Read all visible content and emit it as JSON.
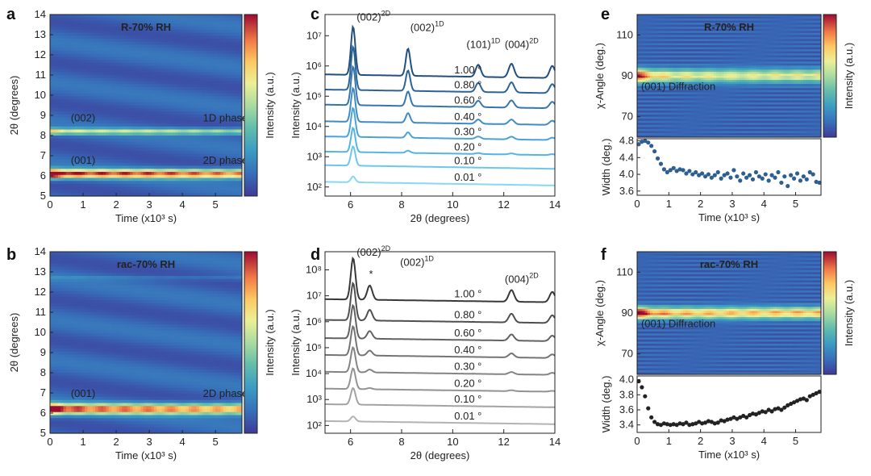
{
  "chart_data": {
    "panels": {
      "a": {
        "type": "heatmap",
        "label": "a",
        "title": "R-70% RH",
        "xlabel": "Time (x10³ s)",
        "ylabel": "2θ (degrees)",
        "xlim": [
          0,
          5.8
        ],
        "ylim": [
          5,
          14
        ],
        "xticks": [
          "0",
          "1",
          "2",
          "3",
          "4",
          "5"
        ],
        "yticks": [
          "5",
          "6",
          "7",
          "8",
          "9",
          "10",
          "11",
          "12",
          "13",
          "14"
        ],
        "colorbar_label": "Intensity (a.u.)",
        "bands": [
          {
            "center": 6.1,
            "width": 0.22,
            "strength": 0.85,
            "hotspot": 1.0
          },
          {
            "center": 8.2,
            "width": 0.15,
            "strength": 0.45,
            "hotspot": 0.5
          }
        ],
        "annotations": [
          {
            "text": "(002)",
            "x": 1.0,
            "y": 8.7
          },
          {
            "text": "1D phase",
            "x": 5.3,
            "y": 8.7
          },
          {
            "text": "(001)",
            "x": 1.0,
            "y": 6.6
          },
          {
            "text": "2D phase",
            "x": 5.3,
            "y": 6.6
          }
        ]
      },
      "b": {
        "type": "heatmap",
        "label": "b",
        "title": "rac-70% RH",
        "xlabel": "Time (x10³ s)",
        "ylabel": "2θ (degrees)",
        "xlim": [
          0,
          5.8
        ],
        "ylim": [
          5,
          14
        ],
        "xticks": [
          "0",
          "1",
          "2",
          "3",
          "4",
          "5"
        ],
        "yticks": [
          "5",
          "6",
          "7",
          "8",
          "9",
          "10",
          "11",
          "12",
          "13",
          "14"
        ],
        "colorbar_label": "Intensity (a.u.)",
        "bands": [
          {
            "center": 6.2,
            "width": 0.26,
            "strength": 0.8,
            "hotspot": 1.0
          },
          {
            "center": 12.7,
            "width": 0.12,
            "strength": 0.08,
            "hotspot": 0.0
          }
        ],
        "annotations": [
          {
            "text": "(001)",
            "x": 1.0,
            "y": 6.8
          },
          {
            "text": "2D phase",
            "x": 5.3,
            "y": 6.8
          }
        ]
      },
      "c": {
        "type": "line",
        "label": "c",
        "xlabel": "2θ (degrees)",
        "ylabel": "Intensity (a.u.)",
        "xlim": [
          5,
          14
        ],
        "ylog_range": [
          1.7,
          7.7
        ],
        "xticks": [
          "6",
          "8",
          "10",
          "12",
          "14"
        ],
        "yticks": [
          "10²",
          "10³",
          "10⁴",
          "10⁵",
          "10⁶",
          "10⁷"
        ],
        "series_labels": [
          "0.01 °",
          "0.10 °",
          "0.20 °",
          "0.30 °",
          "0.40 °",
          "0.60 °",
          "0.80 °",
          "1.00 °"
        ],
        "series_baseline": [
          2.05,
          2.6,
          3.05,
          3.55,
          4.05,
          4.6,
          5.1,
          5.6
        ],
        "colors": [
          "#8ad7f2",
          "#6cc6ee",
          "#55b4e3",
          "#4aa2d6",
          "#3f8cc4",
          "#3576ae",
          "#2b6396",
          "#224f7e"
        ],
        "peaks": [
          {
            "x": 6.1,
            "height": 1.6,
            "width": 0.12
          },
          {
            "x": 8.25,
            "height": 0.9,
            "width": 0.12
          },
          {
            "x": 11.0,
            "height": 0.4,
            "width": 0.14
          },
          {
            "x": 12.3,
            "height": 0.45,
            "width": 0.15
          },
          {
            "x": 13.9,
            "height": 0.4,
            "width": 0.15
          }
        ],
        "annotations": [
          {
            "text": "(002)",
            "sup": "2D",
            "x": 6.9,
            "y": 7.5,
            "color": "#222"
          },
          {
            "text": "(002)",
            "sup": "1D",
            "x": 9.0,
            "y": 7.15,
            "color": "#b03bd1"
          },
          {
            "text": "(101)",
            "sup": "1D",
            "x": 11.2,
            "y": 6.6,
            "color": "#b03bd1"
          },
          {
            "text": "(004)",
            "sup": "2D",
            "x": 12.7,
            "y": 6.6,
            "color": "#222"
          }
        ]
      },
      "d": {
        "type": "line",
        "label": "d",
        "xlabel": "2θ (degrees)",
        "ylabel": "Intensity (a.u.)",
        "xlim": [
          5,
          14
        ],
        "ylog_range": [
          1.7,
          8.7
        ],
        "xticks": [
          "6",
          "8",
          "10",
          "12",
          "14"
        ],
        "yticks": [
          "10²",
          "10³",
          "10⁴",
          "10⁵",
          "10⁶",
          "10⁷",
          "10⁸"
        ],
        "series_labels": [
          "0.01 °",
          "0.10 °",
          "0.20 °",
          "0.30 °",
          "0.40 °",
          "0.60 °",
          "0.80 °",
          "1.00 °"
        ],
        "series_baseline": [
          2.05,
          2.7,
          3.3,
          3.95,
          4.6,
          5.25,
          5.95,
          6.75
        ],
        "colors": [
          "#b3b3b3",
          "#a3a3a3",
          "#939393",
          "#848484",
          "#747474",
          "#626262",
          "#4f4f4f",
          "#383838"
        ],
        "peaks": [
          {
            "x": 6.1,
            "height": 1.6,
            "width": 0.13
          },
          {
            "x": 6.75,
            "height": 0.55,
            "width": 0.14
          },
          {
            "x": 12.3,
            "height": 0.45,
            "width": 0.15
          },
          {
            "x": 13.9,
            "height": 0.4,
            "width": 0.15
          }
        ],
        "annotations": [
          {
            "text": "(002)",
            "sup": "2D",
            "x": 6.9,
            "y": 8.55,
            "color": "#222"
          },
          {
            "text": "(002)",
            "sup": "1D",
            "x": 8.6,
            "y": 8.15,
            "color": "#b03bd1"
          },
          {
            "text": "(004)",
            "sup": "2D",
            "x": 12.7,
            "y": 7.5,
            "color": "#222"
          },
          {
            "text": "*",
            "sup": "",
            "x": 6.8,
            "y": 7.7,
            "color": "#222"
          }
        ]
      },
      "e": {
        "type": "heatmap",
        "label": "e",
        "title": "R-70% RH",
        "ylabel": "χ-Angle (deg.)",
        "xlim": [
          0,
          5.8
        ],
        "ylim": [
          60,
          120
        ],
        "yticks": [
          "70",
          "90",
          "110"
        ],
        "colorbar_label": "Intensity (a.u.)",
        "bands": [
          {
            "center": 90,
            "width": 3.2,
            "strength": 0.55,
            "hotspot": 1.0
          }
        ],
        "annotations": [
          {
            "text": "(001) Diffraction",
            "x": 1.3,
            "y": 83
          }
        ]
      },
      "e_width": {
        "type": "scatter",
        "xlabel": "Time (x10³ s)",
        "ylabel": "Width (deg.)",
        "xlim": [
          0,
          5.8
        ],
        "ylim": [
          3.5,
          4.85
        ],
        "xticks": [
          "0",
          "1",
          "2",
          "3",
          "4",
          "5"
        ],
        "yticks": [
          "3.6",
          "4.0",
          "4.4",
          "4.8"
        ],
        "color": "#2e5f91",
        "x": [
          0.05,
          0.15,
          0.25,
          0.35,
          0.45,
          0.55,
          0.65,
          0.75,
          0.85,
          0.95,
          1.05,
          1.15,
          1.25,
          1.35,
          1.45,
          1.55,
          1.65,
          1.75,
          1.85,
          1.95,
          2.05,
          2.15,
          2.25,
          2.35,
          2.45,
          2.55,
          2.65,
          2.75,
          2.85,
          2.95,
          3.05,
          3.15,
          3.25,
          3.35,
          3.45,
          3.55,
          3.65,
          3.75,
          3.85,
          3.95,
          4.05,
          4.15,
          4.25,
          4.35,
          4.45,
          4.55,
          4.65,
          4.75,
          4.85,
          4.95,
          5.05,
          5.15,
          5.25,
          5.35,
          5.45,
          5.55,
          5.65,
          5.75
        ],
        "y": [
          4.72,
          4.78,
          4.8,
          4.76,
          4.68,
          4.55,
          4.38,
          4.25,
          4.12,
          4.05,
          4.1,
          4.15,
          4.08,
          4.12,
          4.1,
          4.02,
          4.08,
          4.0,
          4.05,
          3.98,
          4.02,
          3.95,
          4.0,
          3.92,
          3.98,
          4.05,
          3.9,
          3.98,
          4.02,
          3.92,
          4.1,
          3.95,
          3.85,
          4.02,
          3.92,
          3.98,
          3.88,
          4.05,
          3.95,
          3.9,
          4.0,
          3.85,
          3.98,
          3.92,
          4.05,
          3.8,
          3.95,
          3.72,
          3.98,
          3.9,
          4.02,
          3.85,
          3.95,
          3.88,
          4.05,
          4.0,
          3.82,
          3.8
        ]
      },
      "f": {
        "type": "heatmap",
        "label": "f",
        "title": "rac-70% RH",
        "ylabel": "χ-Angle (deg.)",
        "xlim": [
          0,
          5.8
        ],
        "ylim": [
          60,
          120
        ],
        "yticks": [
          "70",
          "90",
          "110"
        ],
        "colorbar_label": "Intensity (a.u.)",
        "bands": [
          {
            "center": 90,
            "width": 2.8,
            "strength": 0.7,
            "hotspot": 0.9
          }
        ],
        "annotations": [
          {
            "text": "(001) Diffraction",
            "x": 1.3,
            "y": 83
          }
        ]
      },
      "f_width": {
        "type": "scatter",
        "xlabel": "Time (x10³ s)",
        "ylabel": "Width (deg.)",
        "xlim": [
          0,
          5.8
        ],
        "ylim": [
          3.3,
          4.05
        ],
        "xticks": [
          "0",
          "1",
          "2",
          "3",
          "4",
          "5"
        ],
        "yticks": [
          "3.4",
          "3.6",
          "3.8",
          "4.0"
        ],
        "color": "#222222",
        "x": [
          0.05,
          0.15,
          0.25,
          0.35,
          0.45,
          0.55,
          0.65,
          0.75,
          0.85,
          0.95,
          1.05,
          1.15,
          1.25,
          1.35,
          1.45,
          1.55,
          1.65,
          1.75,
          1.85,
          1.95,
          2.05,
          2.15,
          2.25,
          2.35,
          2.45,
          2.55,
          2.65,
          2.75,
          2.85,
          2.95,
          3.05,
          3.15,
          3.25,
          3.35,
          3.45,
          3.55,
          3.65,
          3.75,
          3.85,
          3.95,
          4.05,
          4.15,
          4.25,
          4.35,
          4.45,
          4.55,
          4.65,
          4.75,
          4.85,
          4.95,
          5.05,
          5.15,
          5.25,
          5.35,
          5.45,
          5.55,
          5.65,
          5.75
        ],
        "y": [
          3.98,
          3.9,
          3.78,
          3.62,
          3.5,
          3.44,
          3.41,
          3.4,
          3.42,
          3.41,
          3.4,
          3.41,
          3.4,
          3.42,
          3.41,
          3.43,
          3.4,
          3.41,
          3.42,
          3.44,
          3.42,
          3.43,
          3.45,
          3.44,
          3.42,
          3.43,
          3.46,
          3.45,
          3.47,
          3.48,
          3.5,
          3.48,
          3.5,
          3.52,
          3.5,
          3.53,
          3.55,
          3.54,
          3.56,
          3.58,
          3.57,
          3.6,
          3.58,
          3.61,
          3.62,
          3.6,
          3.63,
          3.66,
          3.68,
          3.7,
          3.72,
          3.74,
          3.75,
          3.73,
          3.78,
          3.8,
          3.82,
          3.84
        ]
      }
    }
  }
}
